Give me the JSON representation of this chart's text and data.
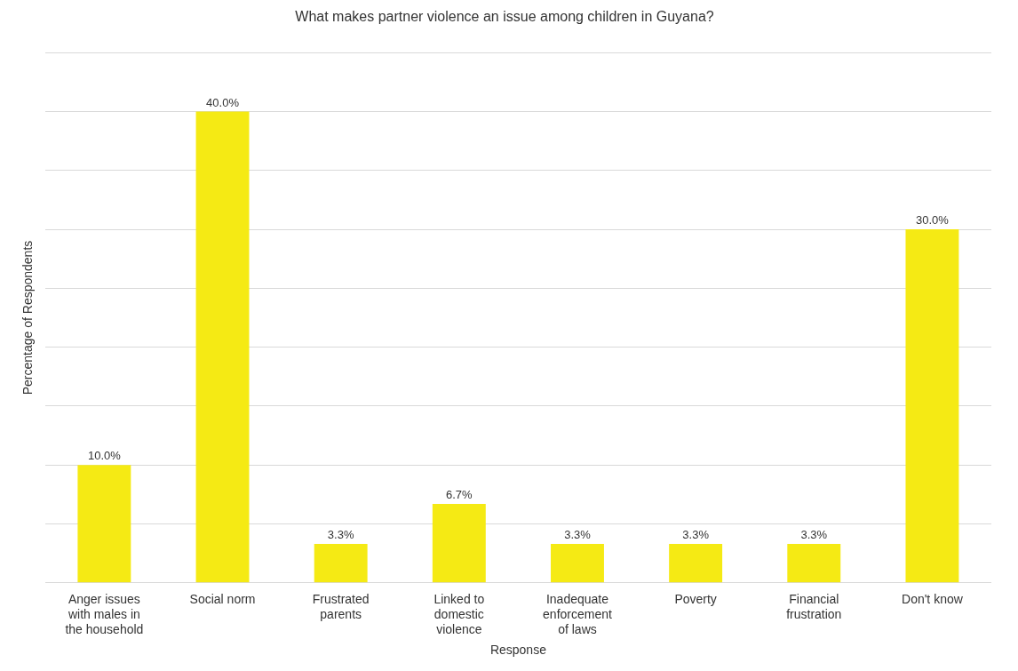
{
  "chart_data": {
    "type": "bar",
    "title": "What makes partner violence an issue among children in Guyana?",
    "xlabel": "Response",
    "ylabel": "Percentage of Respondents",
    "categories": [
      "Anger issues with males in the household",
      "Social norm",
      "Frustrated parents",
      "Linked to domestic violence",
      "Inadequate enforcement of laws",
      "Poverty",
      "Financial frustration",
      "Don't know"
    ],
    "values": [
      10,
      40,
      3.3,
      6.7,
      3.3,
      3.3,
      3.3,
      30
    ],
    "value_labels": [
      "10.0%",
      "40.0%",
      "3.3%",
      "6.7%",
      "3.3%",
      "3.3%",
      "3.3%",
      "30.0%"
    ],
    "color": "#f5ea14",
    "ylim": [
      0,
      45
    ],
    "yticks": [
      {
        "value": 0,
        "label": null
      },
      {
        "value": 5,
        "label": null
      },
      {
        "value": 10,
        "label": null
      },
      {
        "value": 15,
        "label": null
      },
      {
        "value": 20,
        "label": null
      },
      {
        "value": 25,
        "label": null
      },
      {
        "value": 30,
        "label": null
      },
      {
        "value": 35,
        "label": null
      },
      {
        "value": 40,
        "label": null
      },
      {
        "value": 45,
        "label": null
      }
    ],
    "grid": "y",
    "legend": false
  }
}
